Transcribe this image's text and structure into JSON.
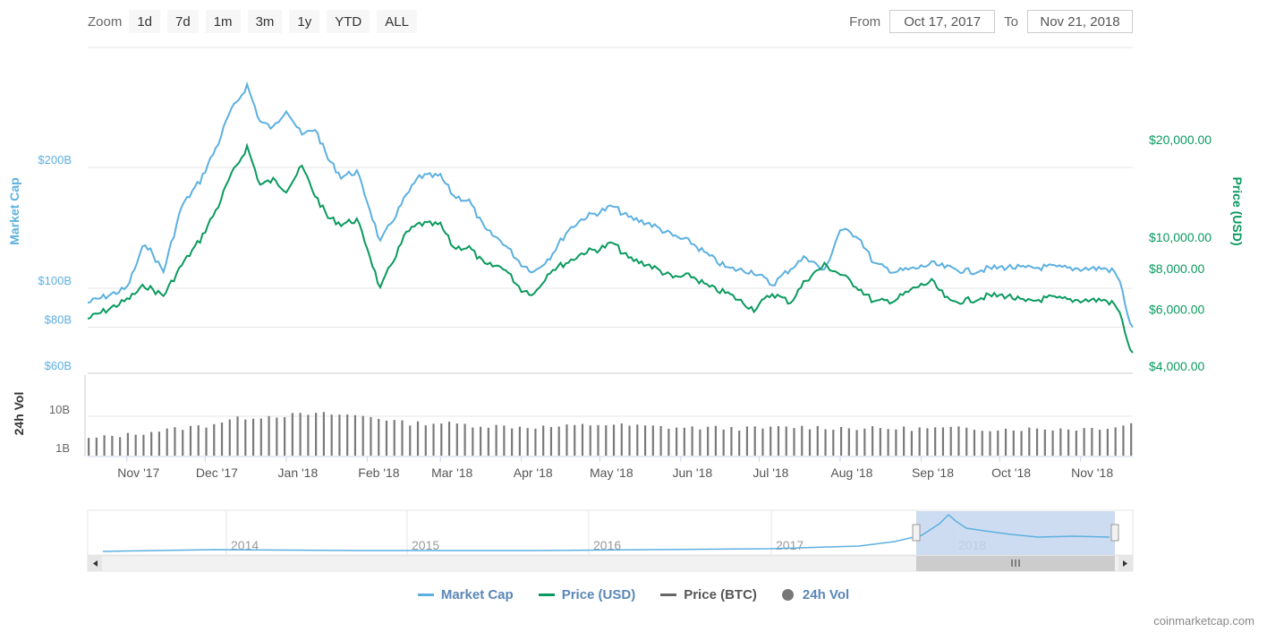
{
  "zoom": {
    "label": "Zoom",
    "buttons": [
      "1d",
      "7d",
      "1m",
      "3m",
      "1y",
      "YTD",
      "ALL"
    ]
  },
  "range": {
    "from_label": "From",
    "from_value": "Oct 17, 2017",
    "to_label": "To",
    "to_value": "Nov 21, 2018"
  },
  "colors": {
    "market_cap": "#5cb0e0",
    "price_usd": "#0a9a5e",
    "price_btc": "#666666",
    "volume": "#7a7a7a",
    "navigator_mask": "#c5d6ee"
  },
  "chart_data": {
    "type": "line",
    "x_ticks": [
      "Nov '17",
      "Dec '17",
      "Jan '18",
      "Feb '18",
      "Mar '18",
      "Apr '18",
      "May '18",
      "Jun '18",
      "Jul '18",
      "Aug '18",
      "Sep '18",
      "Oct '18",
      "Nov '18"
    ],
    "left_axis": {
      "label": "Market Cap",
      "ticks": [
        "$200B",
        "$100B",
        "$80B",
        "$60B"
      ],
      "scale": "log"
    },
    "right_axis": {
      "label": "Price (USD)",
      "ticks": [
        "$20,000.00",
        "$10,000.00",
        "$8,000.00",
        "$6,000.00",
        "$4,000.00"
      ],
      "scale": "log"
    },
    "volume_axis": {
      "label": "24h Vol",
      "ticks": [
        "10B",
        "1B"
      ],
      "scale": "log"
    },
    "series": [
      {
        "name": "Market Cap",
        "x": [
          "2017-10-17",
          "2017-10-25",
          "2017-11-01",
          "2017-11-08",
          "2017-11-15",
          "2017-11-22",
          "2017-11-29",
          "2017-12-06",
          "2017-12-10",
          "2017-12-17",
          "2017-12-22",
          "2017-12-27",
          "2018-01-01",
          "2018-01-07",
          "2018-01-12",
          "2018-01-17",
          "2018-01-22",
          "2018-01-28",
          "2018-02-01",
          "2018-02-06",
          "2018-02-10",
          "2018-02-16",
          "2018-02-21",
          "2018-03-01",
          "2018-03-06",
          "2018-03-12",
          "2018-03-18",
          "2018-03-25",
          "2018-04-01",
          "2018-04-06",
          "2018-04-12",
          "2018-04-19",
          "2018-04-25",
          "2018-05-01",
          "2018-05-06",
          "2018-05-12",
          "2018-05-20",
          "2018-05-29",
          "2018-06-05",
          "2018-06-12",
          "2018-06-19",
          "2018-06-29",
          "2018-07-06",
          "2018-07-13",
          "2018-07-19",
          "2018-07-26",
          "2018-08-01",
          "2018-08-08",
          "2018-08-14",
          "2018-08-22",
          "2018-08-30",
          "2018-09-05",
          "2018-09-12",
          "2018-09-20",
          "2018-09-27",
          "2018-10-04",
          "2018-10-11",
          "2018-10-20",
          "2018-10-28",
          "2018-11-04",
          "2018-11-10",
          "2018-11-14",
          "2018-11-17",
          "2018-11-19",
          "2018-11-21"
        ],
        "values": [
          92,
          96,
          100,
          130,
          110,
          160,
          185,
          230,
          270,
          320,
          260,
          250,
          280,
          240,
          250,
          210,
          190,
          195,
          165,
          130,
          145,
          170,
          190,
          190,
          170,
          165,
          140,
          130,
          115,
          110,
          120,
          140,
          150,
          155,
          160,
          150,
          145,
          135,
          130,
          120,
          112,
          110,
          102,
          112,
          120,
          110,
          140,
          135,
          115,
          110,
          112,
          115,
          112,
          110,
          112,
          113,
          112,
          113,
          112,
          112,
          112,
          110,
          100,
          85,
          80
        ]
      },
      {
        "name": "Price (USD)",
        "x": [
          "2017-10-17",
          "2017-10-25",
          "2017-11-01",
          "2017-11-08",
          "2017-11-15",
          "2017-11-22",
          "2017-11-29",
          "2017-12-06",
          "2017-12-10",
          "2017-12-17",
          "2017-12-22",
          "2017-12-27",
          "2018-01-01",
          "2018-01-07",
          "2018-01-12",
          "2018-01-17",
          "2018-01-22",
          "2018-01-28",
          "2018-02-01",
          "2018-02-06",
          "2018-02-10",
          "2018-02-16",
          "2018-02-21",
          "2018-03-01",
          "2018-03-06",
          "2018-03-12",
          "2018-03-18",
          "2018-03-25",
          "2018-04-01",
          "2018-04-06",
          "2018-04-12",
          "2018-04-19",
          "2018-04-25",
          "2018-05-01",
          "2018-05-06",
          "2018-05-12",
          "2018-05-20",
          "2018-05-29",
          "2018-06-05",
          "2018-06-12",
          "2018-06-19",
          "2018-06-29",
          "2018-07-06",
          "2018-07-13",
          "2018-07-19",
          "2018-07-26",
          "2018-08-01",
          "2018-08-08",
          "2018-08-14",
          "2018-08-22",
          "2018-08-30",
          "2018-09-05",
          "2018-09-12",
          "2018-09-20",
          "2018-09-27",
          "2018-10-04",
          "2018-10-11",
          "2018-10-20",
          "2018-10-28",
          "2018-11-04",
          "2018-11-10",
          "2018-11-14",
          "2018-11-17",
          "2018-11-19",
          "2018-11-21"
        ],
        "values": [
          5600,
          6000,
          6400,
          7100,
          6600,
          8200,
          9800,
          12500,
          15000,
          19000,
          14500,
          15000,
          14000,
          16500,
          13500,
          11500,
          11000,
          11300,
          9300,
          6900,
          8200,
          10300,
          11000,
          10900,
          9300,
          9300,
          8200,
          8100,
          6900,
          6700,
          7900,
          8400,
          9000,
          9200,
          9600,
          8600,
          8200,
          7500,
          7600,
          7000,
          6700,
          6000,
          6700,
          6300,
          7400,
          8200,
          7700,
          7000,
          6300,
          6400,
          7000,
          7300,
          6300,
          6400,
          6600,
          6600,
          6300,
          6500,
          6400,
          6400,
          6400,
          6200,
          5600,
          4700,
          4400
        ]
      }
    ],
    "volume": {
      "name": "24h Vol",
      "x": [
        "2017-10-17",
        "2017-11-01",
        "2017-11-15",
        "2017-12-01",
        "2017-12-15",
        "2018-01-01",
        "2018-01-15",
        "2018-02-01",
        "2018-02-15",
        "2018-03-01",
        "2018-03-15",
        "2018-04-01",
        "2018-04-15",
        "2018-05-01",
        "2018-05-15",
        "2018-06-01",
        "2018-06-15",
        "2018-07-01",
        "2018-07-15",
        "2018-08-01",
        "2018-08-15",
        "2018-09-01",
        "2018-09-15",
        "2018-10-01",
        "2018-10-15",
        "2018-11-01",
        "2018-11-15",
        "2018-11-21"
      ],
      "values": [
        1.8,
        2.5,
        3.5,
        5,
        9,
        11,
        12,
        10,
        6,
        6,
        5,
        4.5,
        4.5,
        5.5,
        4.8,
        4.2,
        4.2,
        4,
        4.5,
        4.2,
        4,
        4,
        4,
        3.8,
        3.9,
        3.9,
        4.6,
        6
      ]
    },
    "navigator": {
      "x_ticks": [
        "2014",
        "2015",
        "2016",
        "2017",
        "2018"
      ],
      "selected_range": [
        "2017-10-17",
        "2018-11-21"
      ]
    },
    "legend": [
      "Market Cap",
      "Price (USD)",
      "Price (BTC)",
      "24h Vol"
    ],
    "grid": true
  },
  "credit": "coinmarketcap.com"
}
